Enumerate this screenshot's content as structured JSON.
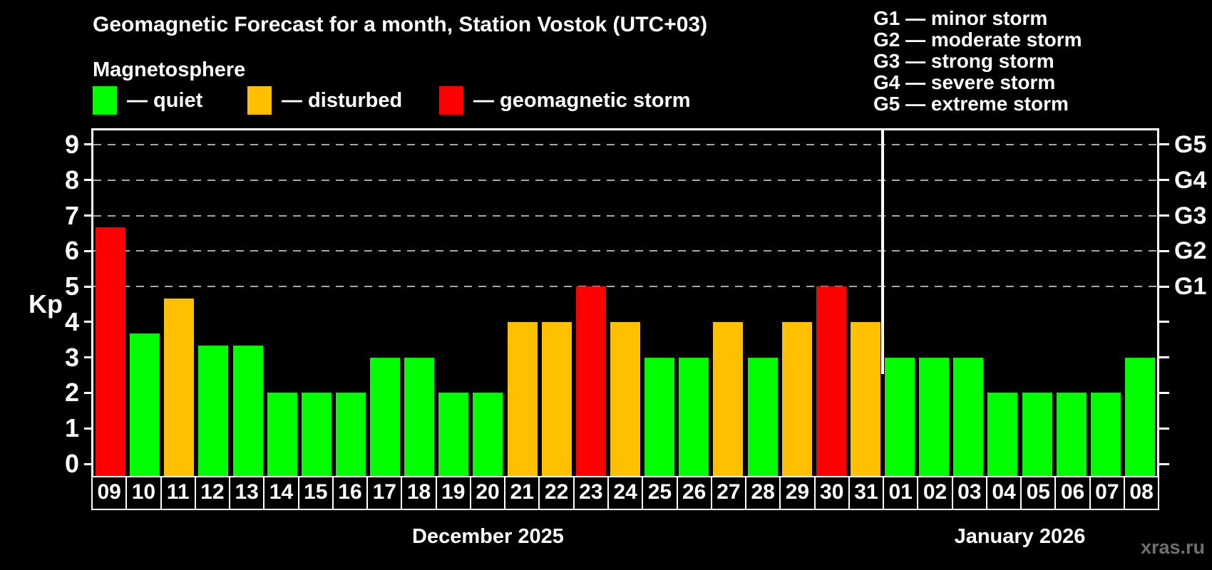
{
  "header": {
    "title": "Geomagnetic Forecast for a month, Station Vostok (UTC+03)",
    "subtitle": "Magnetosphere"
  },
  "legend": {
    "items": [
      {
        "status": "quiet",
        "label": "— quiet",
        "color": "#00ff00"
      },
      {
        "status": "disturbed",
        "label": "— disturbed",
        "color": "#ffc000"
      },
      {
        "status": "storm",
        "label": "— geomagnetic storm",
        "color": "#ff0000"
      }
    ]
  },
  "storm_scale_legend": {
    "items": [
      {
        "code": "G1",
        "label": "G1 — minor storm"
      },
      {
        "code": "G2",
        "label": "G2 — moderate storm"
      },
      {
        "code": "G3",
        "label": "G3 — strong storm"
      },
      {
        "code": "G4",
        "label": "G4 — severe storm"
      },
      {
        "code": "G5",
        "label": "G5 — extreme storm"
      }
    ]
  },
  "chart_data": {
    "type": "bar",
    "title": "Geomagnetic Forecast for a month, Station Vostok (UTC+03)",
    "ylabel": "Kp",
    "ylim": [
      0,
      9
    ],
    "yticks": [
      0,
      1,
      2,
      3,
      4,
      5,
      6,
      7,
      8,
      9
    ],
    "grid": "dashed horizontal lines at storm levels G1–G5 (Kp 5–9)",
    "grid_levels": [
      {
        "kp": 5,
        "g": "G1"
      },
      {
        "kp": 6,
        "g": "G2"
      },
      {
        "kp": 7,
        "g": "G3"
      },
      {
        "kp": 8,
        "g": "G4"
      },
      {
        "kp": 9,
        "g": "G5"
      }
    ],
    "categories": [
      "09",
      "10",
      "11",
      "12",
      "13",
      "14",
      "15",
      "16",
      "17",
      "18",
      "19",
      "20",
      "21",
      "22",
      "23",
      "24",
      "25",
      "26",
      "27",
      "28",
      "29",
      "30",
      "31",
      "01",
      "02",
      "03",
      "04",
      "05",
      "06",
      "07",
      "08"
    ],
    "values": [
      6.67,
      3.67,
      4.67,
      3.33,
      3.33,
      2,
      2,
      2,
      3,
      3,
      2,
      2,
      4,
      4,
      5,
      4,
      3,
      3,
      4,
      3,
      4,
      5,
      4,
      3,
      3,
      3,
      2,
      2,
      2,
      2,
      3
    ],
    "statuses": [
      "storm",
      "quiet",
      "disturbed",
      "quiet",
      "quiet",
      "quiet",
      "quiet",
      "quiet",
      "quiet",
      "quiet",
      "quiet",
      "quiet",
      "disturbed",
      "disturbed",
      "storm",
      "disturbed",
      "quiet",
      "quiet",
      "disturbed",
      "quiet",
      "disturbed",
      "storm",
      "disturbed",
      "quiet",
      "quiet",
      "quiet",
      "quiet",
      "quiet",
      "quiet",
      "quiet",
      "quiet"
    ],
    "months": [
      {
        "label": "December 2025",
        "day_count": 23
      },
      {
        "label": "January 2026",
        "day_count": 8
      }
    ],
    "legend_position": "top"
  },
  "watermark": "xras.ru",
  "colors": {
    "background": "#000000",
    "text": "#ffffff",
    "quiet": "#00ff00",
    "disturbed": "#ffc000",
    "storm": "#ff0000",
    "gridline": "#a6a6a6",
    "watermark": "#6f6f6f"
  }
}
